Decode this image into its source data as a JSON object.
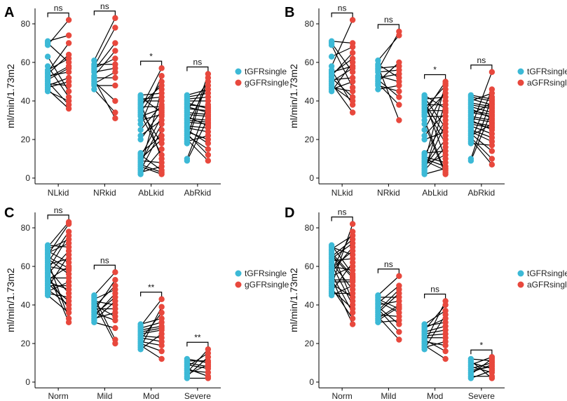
{
  "colors": {
    "teal": "#3cb9d6",
    "red": "#e8483d"
  },
  "chart_data": [
    {
      "panel": "A",
      "type": "scatter",
      "ylabel": "ml/min/1.73m2",
      "ylim": [
        -3,
        88
      ],
      "yticks": [
        0,
        20,
        40,
        60,
        80
      ],
      "categories": [
        "NLkid",
        "NRkid",
        "AbLkid",
        "AbRkid"
      ],
      "legend": [
        "tGFRsingle",
        "gGFRsingle"
      ],
      "significance": [
        "ns",
        "ns",
        "*",
        "ns"
      ],
      "groups": [
        {
          "category": "NLkid",
          "left": [
            45,
            46,
            47,
            48,
            49,
            50,
            51,
            52,
            53,
            54,
            55,
            56,
            58,
            63,
            69,
            70,
            71
          ],
          "right": [
            36,
            38,
            40,
            42,
            45,
            48,
            50,
            52,
            55,
            57,
            58,
            60,
            62,
            64,
            70,
            74,
            82
          ]
        },
        {
          "category": "NRkid",
          "left": [
            46,
            48,
            49,
            50,
            51,
            52,
            53,
            55,
            56,
            57,
            58,
            59,
            61
          ],
          "right": [
            31,
            34,
            40,
            48,
            52,
            55,
            57,
            59,
            62,
            66,
            70,
            78,
            83
          ]
        },
        {
          "category": "AbLkid",
          "left": [
            2,
            3,
            4,
            5,
            6,
            7,
            8,
            9,
            10,
            11,
            12,
            13,
            20,
            22,
            25,
            28,
            30,
            32,
            33,
            34,
            35,
            36,
            37,
            38,
            39,
            40,
            41,
            42,
            43
          ],
          "right": [
            2,
            3,
            4,
            6,
            8,
            10,
            12,
            15,
            18,
            20,
            22,
            25,
            28,
            30,
            32,
            33,
            34,
            35,
            36,
            37,
            38,
            40,
            42,
            44,
            46,
            48,
            50,
            53,
            57
          ]
        },
        {
          "category": "AbRkid",
          "left": [
            9,
            10,
            18,
            19,
            20,
            21,
            22,
            23,
            24,
            25,
            26,
            27,
            28,
            29,
            30,
            31,
            32,
            33,
            34,
            35,
            36,
            37,
            38,
            39,
            40,
            41,
            42,
            43
          ],
          "right": [
            9,
            12,
            15,
            18,
            20,
            22,
            24,
            26,
            27,
            28,
            29,
            30,
            31,
            32,
            33,
            34,
            35,
            36,
            37,
            38,
            40,
            42,
            44,
            46,
            48,
            50,
            52,
            54
          ]
        }
      ]
    },
    {
      "panel": "B",
      "type": "scatter",
      "ylabel": "ml/min/1.73m2",
      "ylim": [
        -3,
        88
      ],
      "yticks": [
        0,
        20,
        40,
        60,
        80
      ],
      "categories": [
        "NLkid",
        "NRkid",
        "AbLkid",
        "AbRkid"
      ],
      "legend": [
        "tGFRsingle",
        "aGFRsingle"
      ],
      "significance": [
        "ns",
        "ns",
        "*",
        "ns"
      ],
      "groups": [
        {
          "category": "NLkid",
          "left": [
            45,
            46,
            47,
            48,
            49,
            50,
            51,
            52,
            53,
            54,
            55,
            56,
            58,
            63,
            69,
            70,
            71
          ],
          "right": [
            34,
            38,
            40,
            42,
            45,
            47,
            50,
            52,
            55,
            57,
            58,
            60,
            62,
            65,
            68,
            70,
            82
          ]
        },
        {
          "category": "NRkid",
          "left": [
            46,
            48,
            49,
            50,
            51,
            52,
            53,
            55,
            56,
            57,
            58,
            59,
            61
          ],
          "right": [
            30,
            38,
            42,
            45,
            48,
            50,
            52,
            54,
            56,
            58,
            60,
            74,
            76
          ]
        },
        {
          "category": "AbLkid",
          "left": [
            2,
            3,
            4,
            5,
            6,
            7,
            8,
            9,
            10,
            11,
            12,
            13,
            20,
            22,
            25,
            28,
            30,
            32,
            33,
            34,
            35,
            36,
            37,
            38,
            39,
            40,
            41,
            42,
            43
          ],
          "right": [
            2,
            3,
            4,
            5,
            6,
            8,
            10,
            12,
            14,
            16,
            18,
            20,
            22,
            24,
            26,
            28,
            30,
            32,
            34,
            35,
            36,
            38,
            40,
            42,
            44,
            46,
            48,
            49,
            50
          ]
        },
        {
          "category": "AbRkid",
          "left": [
            9,
            10,
            18,
            19,
            20,
            21,
            22,
            23,
            24,
            25,
            26,
            27,
            28,
            29,
            30,
            31,
            32,
            33,
            34,
            35,
            36,
            37,
            38,
            39,
            40,
            41,
            42,
            43
          ],
          "right": [
            7,
            10,
            14,
            17,
            19,
            21,
            23,
            25,
            26,
            27,
            28,
            29,
            30,
            31,
            32,
            33,
            34,
            35,
            36,
            37,
            38,
            39,
            40,
            41,
            42,
            44,
            46,
            55
          ]
        }
      ]
    },
    {
      "panel": "C",
      "type": "scatter",
      "ylabel": "ml/min/1.73m2",
      "ylim": [
        -3,
        88
      ],
      "yticks": [
        0,
        20,
        40,
        60,
        80
      ],
      "categories": [
        "Norm",
        "Mild",
        "Mod",
        "Severe"
      ],
      "legend": [
        "tGFRsingle",
        "gGFRsingle"
      ],
      "significance": [
        "ns",
        "ns",
        "**",
        "**"
      ],
      "groups": [
        {
          "category": "Norm",
          "left": [
            45,
            46,
            47,
            48,
            49,
            50,
            51,
            52,
            53,
            54,
            55,
            56,
            57,
            58,
            59,
            60,
            61,
            62,
            63,
            64,
            65,
            66,
            67,
            68,
            69,
            70,
            71
          ],
          "right": [
            31,
            33,
            36,
            38,
            40,
            42,
            44,
            46,
            48,
            50,
            52,
            54,
            56,
            58,
            59,
            60,
            62,
            64,
            66,
            68,
            70,
            72,
            74,
            76,
            78,
            82,
            83
          ]
        },
        {
          "category": "Mild",
          "left": [
            31,
            32,
            33,
            34,
            35,
            36,
            37,
            38,
            39,
            40,
            41,
            42,
            43,
            44,
            45
          ],
          "right": [
            20,
            22,
            28,
            32,
            34,
            36,
            38,
            40,
            42,
            44,
            46,
            48,
            50,
            53,
            57
          ]
        },
        {
          "category": "Mod",
          "left": [
            17,
            18,
            19,
            20,
            21,
            22,
            23,
            24,
            25,
            26,
            27,
            28,
            29,
            30
          ],
          "right": [
            12,
            16,
            19,
            21,
            23,
            25,
            27,
            28,
            29,
            31,
            33,
            36,
            39,
            43
          ]
        },
        {
          "category": "Severe",
          "left": [
            2,
            3,
            4,
            5,
            6,
            7,
            8,
            9,
            10,
            11,
            12
          ],
          "right": [
            2,
            3,
            5,
            7,
            8,
            9,
            10,
            11,
            13,
            15,
            17
          ]
        }
      ]
    },
    {
      "panel": "D",
      "type": "scatter",
      "ylabel": "ml/min/1.73m2",
      "ylim": [
        -3,
        88
      ],
      "yticks": [
        0,
        20,
        40,
        60,
        80
      ],
      "categories": [
        "Norm",
        "Mild",
        "Mod",
        "Severe"
      ],
      "legend": [
        "tGFRsingle",
        "aGFRsingle"
      ],
      "significance": [
        "ns",
        "ns",
        "ns",
        "*"
      ],
      "groups": [
        {
          "category": "Norm",
          "left": [
            45,
            46,
            47,
            48,
            49,
            50,
            51,
            52,
            53,
            54,
            55,
            56,
            57,
            58,
            59,
            60,
            61,
            62,
            63,
            64,
            65,
            66,
            67,
            68,
            69,
            70,
            71
          ],
          "right": [
            30,
            33,
            36,
            38,
            40,
            42,
            44,
            46,
            48,
            50,
            52,
            53,
            54,
            55,
            56,
            58,
            60,
            62,
            64,
            66,
            68,
            70,
            72,
            74,
            76,
            78,
            82
          ]
        },
        {
          "category": "Mild",
          "left": [
            31,
            32,
            33,
            34,
            35,
            36,
            37,
            38,
            39,
            40,
            41,
            42,
            43,
            44,
            45
          ],
          "right": [
            22,
            26,
            30,
            32,
            34,
            36,
            38,
            39,
            40,
            42,
            44,
            46,
            48,
            50,
            55
          ]
        },
        {
          "category": "Mod",
          "left": [
            17,
            18,
            19,
            20,
            21,
            22,
            23,
            24,
            25,
            26,
            27,
            28,
            29,
            30
          ],
          "right": [
            12,
            16,
            19,
            21,
            23,
            25,
            27,
            29,
            31,
            33,
            35,
            37,
            40,
            42
          ]
        },
        {
          "category": "Severe",
          "left": [
            2,
            3,
            4,
            5,
            6,
            7,
            8,
            9,
            10,
            11,
            12
          ],
          "right": [
            2,
            3,
            5,
            6,
            7,
            8,
            9,
            10,
            11,
            12,
            13
          ]
        }
      ]
    }
  ]
}
